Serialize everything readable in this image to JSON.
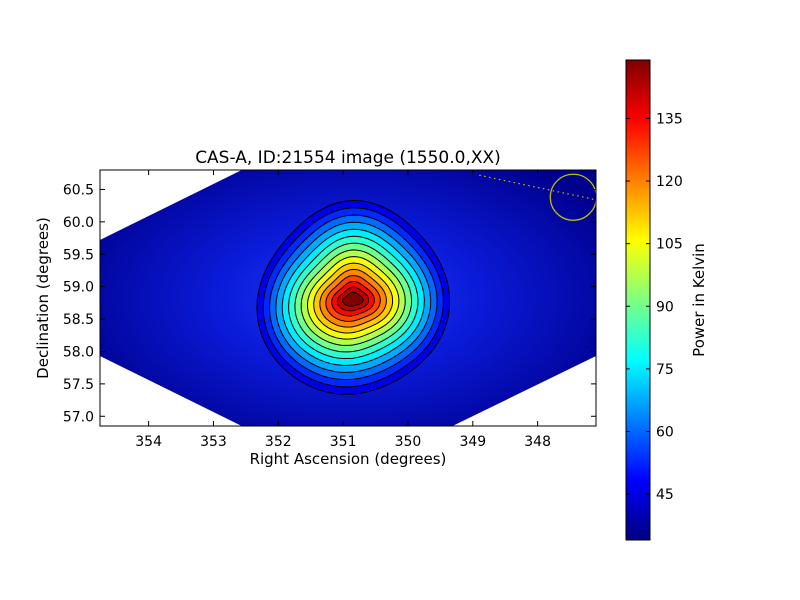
{
  "chart_data": {
    "type": "heatmap",
    "title": "CAS-A, ID:21554 image (1550.0,XX)",
    "xlabel": "Right Ascension (degrees)",
    "ylabel": "Declination (degrees)",
    "xlim": [
      354.75,
      347.1
    ],
    "ylim": [
      56.85,
      60.8
    ],
    "x_ticks": [
      354,
      353,
      352,
      351,
      350,
      349,
      348
    ],
    "y_ticks": [
      "57.0",
      "57.5",
      "58.0",
      "58.5",
      "59.0",
      "59.5",
      "60.0",
      "60.5"
    ],
    "x_axis_inverted": true,
    "colormap": "jet",
    "colorbar": {
      "label": "Power in Kelvin",
      "range": [
        34,
        149
      ],
      "ticks": [
        45,
        60,
        75,
        90,
        105,
        120,
        135
      ]
    },
    "peak": {
      "ra": 350.85,
      "dec": 58.8,
      "value": 149
    },
    "contour_count": 15,
    "annotations": [
      {
        "type": "circle",
        "ra": 347.45,
        "dec": 60.38,
        "color": "#bfbf00"
      },
      {
        "type": "dotted-line",
        "from": {
          "ra": 348.9,
          "dec": 60.72
        },
        "to": {
          "ra": 347.1,
          "dec": 60.34
        },
        "color": "#bfbf00"
      }
    ]
  }
}
